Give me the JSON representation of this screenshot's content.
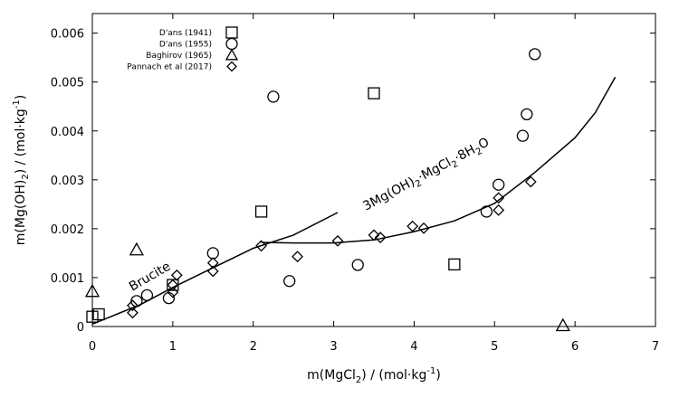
{
  "chart_data": {
    "type": "scatter",
    "title": "",
    "xlabel": {
      "pre": "m(MgCl",
      "sub": "2",
      "post": ") / (mol·kg",
      "sup": "-1",
      "end": ")"
    },
    "ylabel": {
      "pre": "m(Mg(OH)",
      "sub": "2",
      "post": ") / (mol·kg",
      "sup": "-1",
      "end": ")"
    },
    "xlim": [
      0,
      7
    ],
    "ylim": [
      0,
      0.0064
    ],
    "xticks": [
      "0",
      "1",
      "2",
      "3",
      "4",
      "5",
      "6",
      "7"
    ],
    "yticks": [
      "0",
      "0.001",
      "0.002",
      "0.003",
      "0.004",
      "0.005",
      "0.006"
    ],
    "legend_position": "top-left",
    "series": [
      {
        "name": "D'ans (1941)",
        "marker": "square",
        "points": [
          [
            0,
            0.0002
          ],
          [
            0.08,
            0.00025
          ],
          [
            1.0,
            0.00085
          ],
          [
            2.1,
            0.00235
          ],
          [
            3.5,
            0.00477
          ],
          [
            4.5,
            0.00127
          ]
        ]
      },
      {
        "name": "D'ans (1955)",
        "marker": "circle",
        "points": [
          [
            0.55,
            0.00052
          ],
          [
            0.68,
            0.00064
          ],
          [
            0.95,
            0.00058
          ],
          [
            1.5,
            0.0015
          ],
          [
            2.25,
            0.0047
          ],
          [
            2.45,
            0.00093
          ],
          [
            3.3,
            0.00126
          ],
          [
            4.9,
            0.00235
          ],
          [
            5.05,
            0.0029
          ],
          [
            5.35,
            0.0039
          ],
          [
            5.4,
            0.00434
          ],
          [
            5.5,
            0.00557
          ]
        ]
      },
      {
        "name": "Baghirov (1965)",
        "marker": "triangle",
        "points": [
          [
            0,
            0.00072
          ],
          [
            0.55,
            0.00157
          ],
          [
            5.85,
            2e-05
          ]
        ]
      },
      {
        "name": "Pannach et al (2017)",
        "marker": "diamond",
        "points": [
          [
            0.5,
            0.00028
          ],
          [
            0.5,
            0.00043
          ],
          [
            1.0,
            0.0007
          ],
          [
            1.0,
            0.00085
          ],
          [
            1.05,
            0.00105
          ],
          [
            1.5,
            0.00113
          ],
          [
            1.5,
            0.0013
          ],
          [
            2.1,
            0.00165
          ],
          [
            2.55,
            0.00143
          ],
          [
            3.05,
            0.00175
          ],
          [
            3.5,
            0.00187
          ],
          [
            3.58,
            0.00182
          ],
          [
            3.98,
            0.00205
          ],
          [
            4.12,
            0.00201
          ],
          [
            5.05,
            0.00238
          ],
          [
            5.05,
            0.00263
          ],
          [
            5.45,
            0.00296
          ]
        ]
      }
    ],
    "curves": [
      {
        "name": "Brucite",
        "points": [
          [
            0,
            5e-05
          ],
          [
            0.3,
            0.00025
          ],
          [
            0.6,
            0.00045
          ],
          [
            1.0,
            0.0008
          ],
          [
            1.5,
            0.0012
          ],
          [
            2.0,
            0.0016
          ],
          [
            2.5,
            0.00187
          ],
          [
            3.05,
            0.00233
          ]
        ]
      },
      {
        "name": "3Mg(OH)2·MgCl2·8H2O",
        "points": [
          [
            2.1,
            0.00172
          ],
          [
            2.5,
            0.00171
          ],
          [
            3.0,
            0.00171
          ],
          [
            3.5,
            0.00177
          ],
          [
            4.0,
            0.00194
          ],
          [
            4.5,
            0.00216
          ],
          [
            5.0,
            0.00252
          ],
          [
            5.5,
            0.00315
          ],
          [
            6.0,
            0.00386
          ],
          [
            6.25,
            0.00437
          ],
          [
            6.5,
            0.0051
          ]
        ]
      }
    ],
    "annotations": {
      "brucite": "Brucite",
      "hydroxychloride": {
        "t1": "3Mg(OH)",
        "s1": "2",
        "t2": "·MgCl",
        "s2": "2",
        "t3": "·8H",
        "s3": "2",
        "t4": "O"
      }
    }
  }
}
